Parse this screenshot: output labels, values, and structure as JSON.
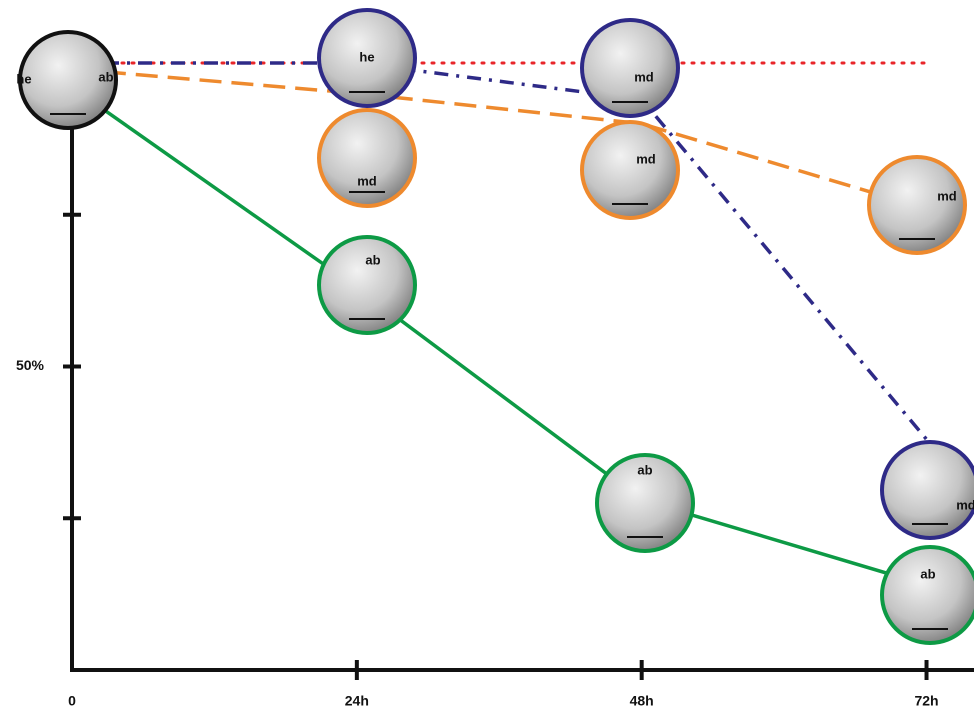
{
  "chart_data": {
    "type": "line",
    "x": [
      0,
      24,
      48,
      72
    ],
    "xlim": [
      0,
      76
    ],
    "xticks": [
      0,
      {
        "value": 24,
        "label": "24h"
      },
      {
        "value": 48,
        "label": "48h"
      },
      {
        "value": 72,
        "label": "72h"
      }
    ],
    "ylim": [
      0,
      100
    ],
    "yticks": [
      {
        "value": 25,
        "label": null
      },
      {
        "value": 50,
        "label": "50%"
      },
      {
        "value": 75,
        "label": null
      }
    ],
    "series": [
      {
        "color": "#e8262a",
        "style": "dotted",
        "values": [
          100,
          100,
          100,
          100
        ]
      },
      {
        "color": "#2e2a87",
        "style": "dashdot",
        "values": [
          100,
          100,
          94,
          38
        ]
      },
      {
        "color": "#ee8a2e",
        "style": "dashed",
        "values": [
          99,
          95,
          90,
          76
        ]
      },
      {
        "color": "#0d9a45",
        "style": "solid",
        "values": [
          96,
          63,
          28,
          14
        ]
      }
    ],
    "annotations": [
      "he",
      "ab",
      "he",
      "md",
      "ab",
      "md",
      "md",
      "ab",
      "md",
      "md",
      "ab"
    ]
  }
}
